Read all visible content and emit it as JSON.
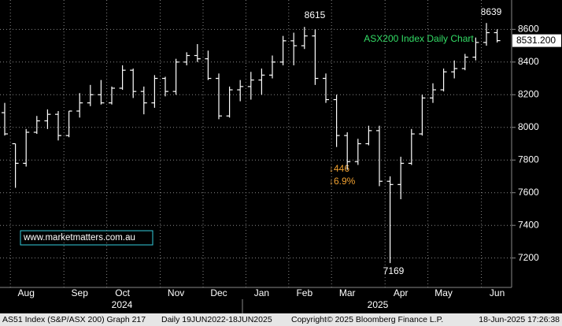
{
  "chart_data": {
    "type": "ohlc",
    "title": "ASX200 Index Daily Chart",
    "categories": [
      null,
      null,
      "Aug",
      null,
      null,
      null,
      null,
      "Sep",
      null,
      null,
      null,
      "Oct",
      null,
      null,
      null,
      null,
      "Nov",
      null,
      null,
      null,
      "Dec",
      null,
      null,
      null,
      "Jan",
      null,
      null,
      null,
      "Feb",
      null,
      null,
      null,
      "Mar",
      null,
      null,
      null,
      null,
      "Apr",
      null,
      null,
      null,
      "May",
      null,
      null,
      null,
      null,
      "Jun"
    ],
    "open": [
      8090,
      7900,
      7780,
      7970,
      8040,
      8080,
      7950,
      8100,
      8150,
      8200,
      8150,
      8240,
      8350,
      8220,
      8150,
      8300,
      8220,
      8400,
      8440,
      8420,
      8300,
      8070,
      8230,
      8250,
      8290,
      8320,
      8400,
      8530,
      8500,
      8560,
      8300,
      8170,
      7950,
      7790,
      7900,
      7980,
      7670,
      7650,
      7780,
      7960,
      8180,
      8230,
      8340,
      8360,
      8430,
      8520,
      8580
    ],
    "high": [
      8150,
      7900,
      7990,
      8070,
      8110,
      8100,
      8100,
      8210,
      8260,
      8290,
      8250,
      8380,
      8360,
      8250,
      8320,
      8310,
      8420,
      8460,
      8510,
      8470,
      8330,
      8250,
      8290,
      8340,
      8360,
      8440,
      8560,
      8580,
      8615,
      8600,
      8330,
      8200,
      7970,
      7930,
      8010,
      8010,
      7700,
      7820,
      7990,
      8200,
      8270,
      8360,
      8410,
      8450,
      8550,
      8639,
      8600
    ],
    "low": [
      7950,
      7630,
      7760,
      7960,
      7990,
      7920,
      7940,
      8060,
      8130,
      8140,
      8140,
      8230,
      8180,
      8080,
      8120,
      8190,
      8200,
      8380,
      8400,
      8290,
      8050,
      8060,
      8160,
      8170,
      8200,
      8300,
      8380,
      8380,
      8480,
      8260,
      8150,
      7880,
      7740,
      7770,
      7890,
      7640,
      7169,
      7560,
      7770,
      7950,
      8150,
      8220,
      8300,
      8350,
      8410,
      8500,
      8520
    ],
    "close": [
      7960,
      7780,
      7970,
      8040,
      8080,
      7950,
      8100,
      8150,
      8200,
      8150,
      8240,
      8350,
      8220,
      8150,
      8300,
      8220,
      8400,
      8440,
      8420,
      8300,
      8070,
      8230,
      8250,
      8290,
      8320,
      8400,
      8530,
      8500,
      8560,
      8300,
      8170,
      7950,
      7790,
      7900,
      7980,
      7670,
      7650,
      7780,
      7960,
      8180,
      8230,
      8340,
      8360,
      8430,
      8520,
      8580,
      8531.2
    ],
    "color": "#ffffff",
    "last_label": "8531.200",
    "ylim": [
      7020,
      8780
    ],
    "yticks": [
      7200,
      7400,
      7600,
      7800,
      8000,
      8200,
      8400,
      8600
    ],
    "grid": true,
    "year_labels": [
      "2024",
      "2025"
    ],
    "annotations": [
      "8615",
      "8639",
      "7169"
    ],
    "drop_labels": [
      "↓446",
      "↓6.9%"
    ],
    "link": "www.marketmatters.com.au",
    "footer": [
      "AS51 Index (S&P/ASX 200) Graph 217",
      "Daily 19JUN2022-18JUN2025",
      "Copyright© 2025 Bloomberg Finance L.P.",
      "18-Jun-2025 17:26:38"
    ]
  }
}
